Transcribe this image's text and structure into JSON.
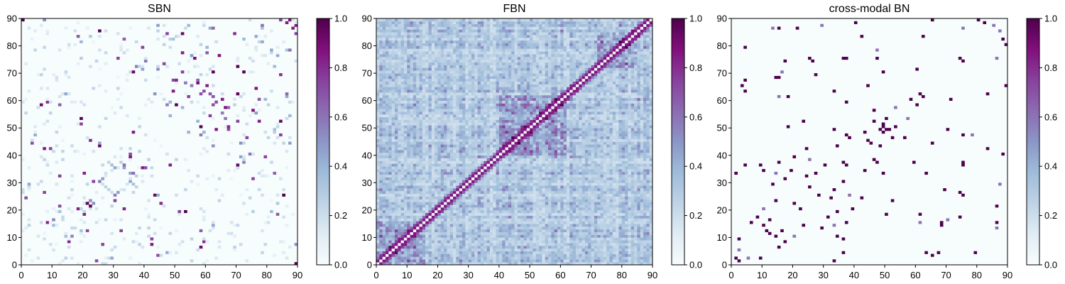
{
  "colors": {
    "colormap": "BuPu",
    "stops": [
      "#f7fcfd",
      "#e0ecf4",
      "#bfd3e6",
      "#9ebcda",
      "#8c96c6",
      "#8c6bb1",
      "#88419d",
      "#810f7c",
      "#4d004b"
    ]
  },
  "chart_data": [
    {
      "type": "heatmap",
      "title": "SBN",
      "size": 90,
      "xlim": [
        0,
        90
      ],
      "ylim": [
        0,
        90
      ],
      "xticks": [
        "0",
        "10",
        "20",
        "30",
        "40",
        "50",
        "60",
        "70",
        "80",
        "90"
      ],
      "yticks": [
        "0",
        "10",
        "20",
        "30",
        "40",
        "50",
        "60",
        "70",
        "80",
        "90"
      ],
      "colorbar": {
        "range": [
          0.0,
          1.0
        ],
        "ticks": [
          "0.0",
          "0.2",
          "0.4",
          "0.6",
          "0.8",
          "1.0"
        ]
      },
      "pattern": "sparse",
      "density": 0.045,
      "band_strength": 0.0,
      "seed": 11
    },
    {
      "type": "heatmap",
      "title": "FBN",
      "size": 90,
      "xlim": [
        0,
        90
      ],
      "ylim": [
        0,
        90
      ],
      "xticks": [
        "0",
        "10",
        "20",
        "30",
        "40",
        "50",
        "60",
        "70",
        "80",
        "90"
      ],
      "yticks": [
        "0",
        "10",
        "20",
        "30",
        "40",
        "50",
        "60",
        "70",
        "80",
        "90"
      ],
      "colorbar": {
        "range": [
          0.0,
          1.0
        ],
        "ticks": [
          "0.0",
          "0.2",
          "0.4",
          "0.6",
          "0.8",
          "1.0"
        ]
      },
      "pattern": "dense",
      "density": 1.0,
      "band_strength": 0.85,
      "seed": 29
    },
    {
      "type": "heatmap",
      "title": "cross-modal BN",
      "size": 90,
      "xlim": [
        0,
        90
      ],
      "ylim": [
        0,
        90
      ],
      "xticks": [
        "0",
        "10",
        "20",
        "30",
        "40",
        "50",
        "60",
        "70",
        "80",
        "90"
      ],
      "yticks": [
        "0",
        "10",
        "20",
        "30",
        "40",
        "50",
        "60",
        "70",
        "80",
        "90"
      ],
      "colorbar": {
        "range": [
          0.0,
          1.0
        ],
        "ticks": [
          "0.0",
          "0.2",
          "0.4",
          "0.6",
          "0.8",
          "1.0"
        ]
      },
      "pattern": "binary",
      "density": 0.03,
      "band_strength": 0.0,
      "seed": 11
    }
  ]
}
